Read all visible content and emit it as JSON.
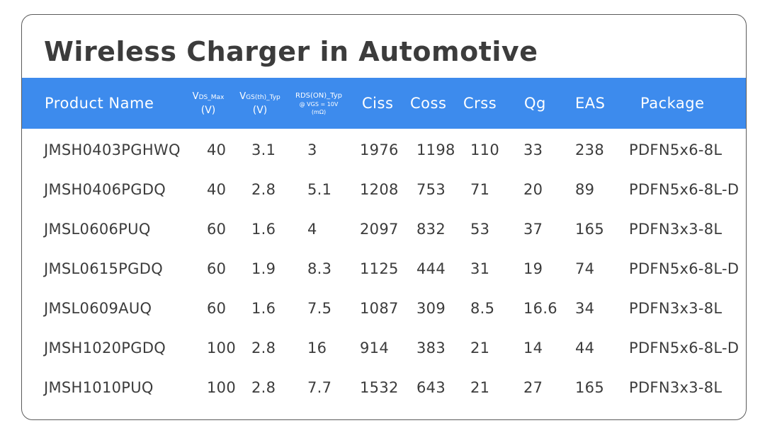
{
  "title": "Wireless Charger in Automotive",
  "header": {
    "product_name": "Product Name",
    "vds": {
      "v": "V",
      "sub": "DS_Max",
      "unit": "(V)"
    },
    "vgs": {
      "v": "V",
      "sub": "GS(th)_Typ",
      "unit": "(V)"
    },
    "rds": {
      "line1": "RDS(ON)_Typ",
      "line2": "@ VGS = 10V",
      "line3": "(mΩ)"
    },
    "ciss": "Ciss",
    "coss": "Coss",
    "crss": "Crss",
    "qg": "Qg",
    "eas": "EAS",
    "package": "Package"
  },
  "rows": [
    [
      "JMSH0403PGHWQ",
      "40",
      "3.1",
      "3",
      "1976",
      "1198",
      "110",
      "33",
      "238",
      "PDFN5x6-8L"
    ],
    [
      "JMSH0406PGDQ",
      "40",
      "2.8",
      "5.1",
      "1208",
      "753",
      "71",
      "20",
      "89",
      "PDFN5x6-8L-D"
    ],
    [
      "JMSL0606PUQ",
      "60",
      "1.6",
      "4",
      "2097",
      "832",
      "53",
      "37",
      "165",
      "PDFN3x3-8L"
    ],
    [
      "JMSL0615PGDQ",
      "60",
      "1.9",
      "8.3",
      "1125",
      "444",
      "31",
      "19",
      "74",
      "PDFN5x6-8L-D"
    ],
    [
      "JMSL0609AUQ",
      "60",
      "1.6",
      "7.5",
      "1087",
      "309",
      "8.5",
      "16.6",
      "34",
      "PDFN3x3-8L"
    ],
    [
      "JMSH1020PGDQ",
      "100",
      "2.8",
      "16",
      "914",
      "383",
      "21",
      "14",
      "44",
      "PDFN5x6-8L-D"
    ],
    [
      "JMSH1010PUQ",
      "100",
      "2.8",
      "7.7",
      "1532",
      "643",
      "21",
      "27",
      "165",
      "PDFN3x3-8L"
    ]
  ],
  "colors": {
    "header_bg": "#3d8bed",
    "header_text": "#ffffff",
    "text": "#3c3c3c",
    "border": "#5a5a5a"
  }
}
